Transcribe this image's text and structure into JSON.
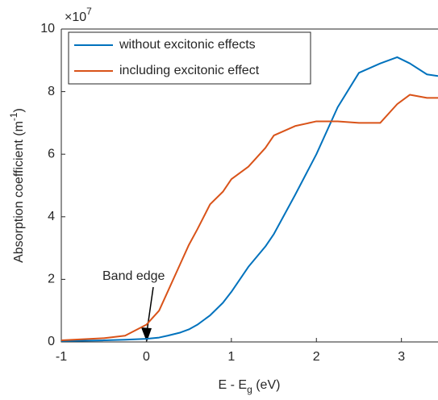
{
  "chart_data": {
    "type": "line",
    "multiplier": "×10",
    "multiplier_exp": "7",
    "y_label": "Absorption coefficient (m",
    "y_label_sup": "-1",
    "y_label_end": ")",
    "x_label": "E - E",
    "x_label_sub": "g",
    "x_label_end": " (eV)",
    "annotation": "Band edge",
    "x": [
      -1,
      -0.5,
      -0.25,
      0,
      0.15,
      0.25,
      0.4,
      0.5,
      0.6,
      0.75,
      0.9,
      1,
      1.2,
      1.4,
      1.5,
      1.75,
      2,
      2.25,
      2.5,
      2.75,
      2.95,
      3.1,
      3.3,
      3.43
    ],
    "series": [
      {
        "name": "without excitonic effects",
        "color": "#0072bd",
        "values": [
          0.03,
          0.05,
          0.07,
          0.1,
          0.14,
          0.2,
          0.3,
          0.4,
          0.55,
          0.85,
          1.25,
          1.6,
          2.4,
          3.05,
          3.45,
          4.7,
          6.0,
          7.5,
          8.6,
          8.9,
          9.1,
          8.9,
          8.55,
          8.5
        ]
      },
      {
        "name": "including excitonic effect",
        "color": "#d95319",
        "values": [
          0.05,
          0.12,
          0.2,
          0.55,
          1.0,
          1.6,
          2.5,
          3.1,
          3.6,
          4.4,
          4.8,
          5.2,
          5.6,
          6.2,
          6.6,
          6.9,
          7.05,
          7.05,
          7.0,
          7.0,
          7.6,
          7.9,
          7.8,
          7.8
        ]
      }
    ],
    "xlim": [
      -1,
      3.43
    ],
    "xticks": [
      -1,
      0,
      1,
      2,
      3
    ],
    "ylim": [
      0,
      10
    ],
    "yticks": [
      0,
      2,
      4,
      6,
      8,
      10
    ],
    "legend": "upper left"
  }
}
